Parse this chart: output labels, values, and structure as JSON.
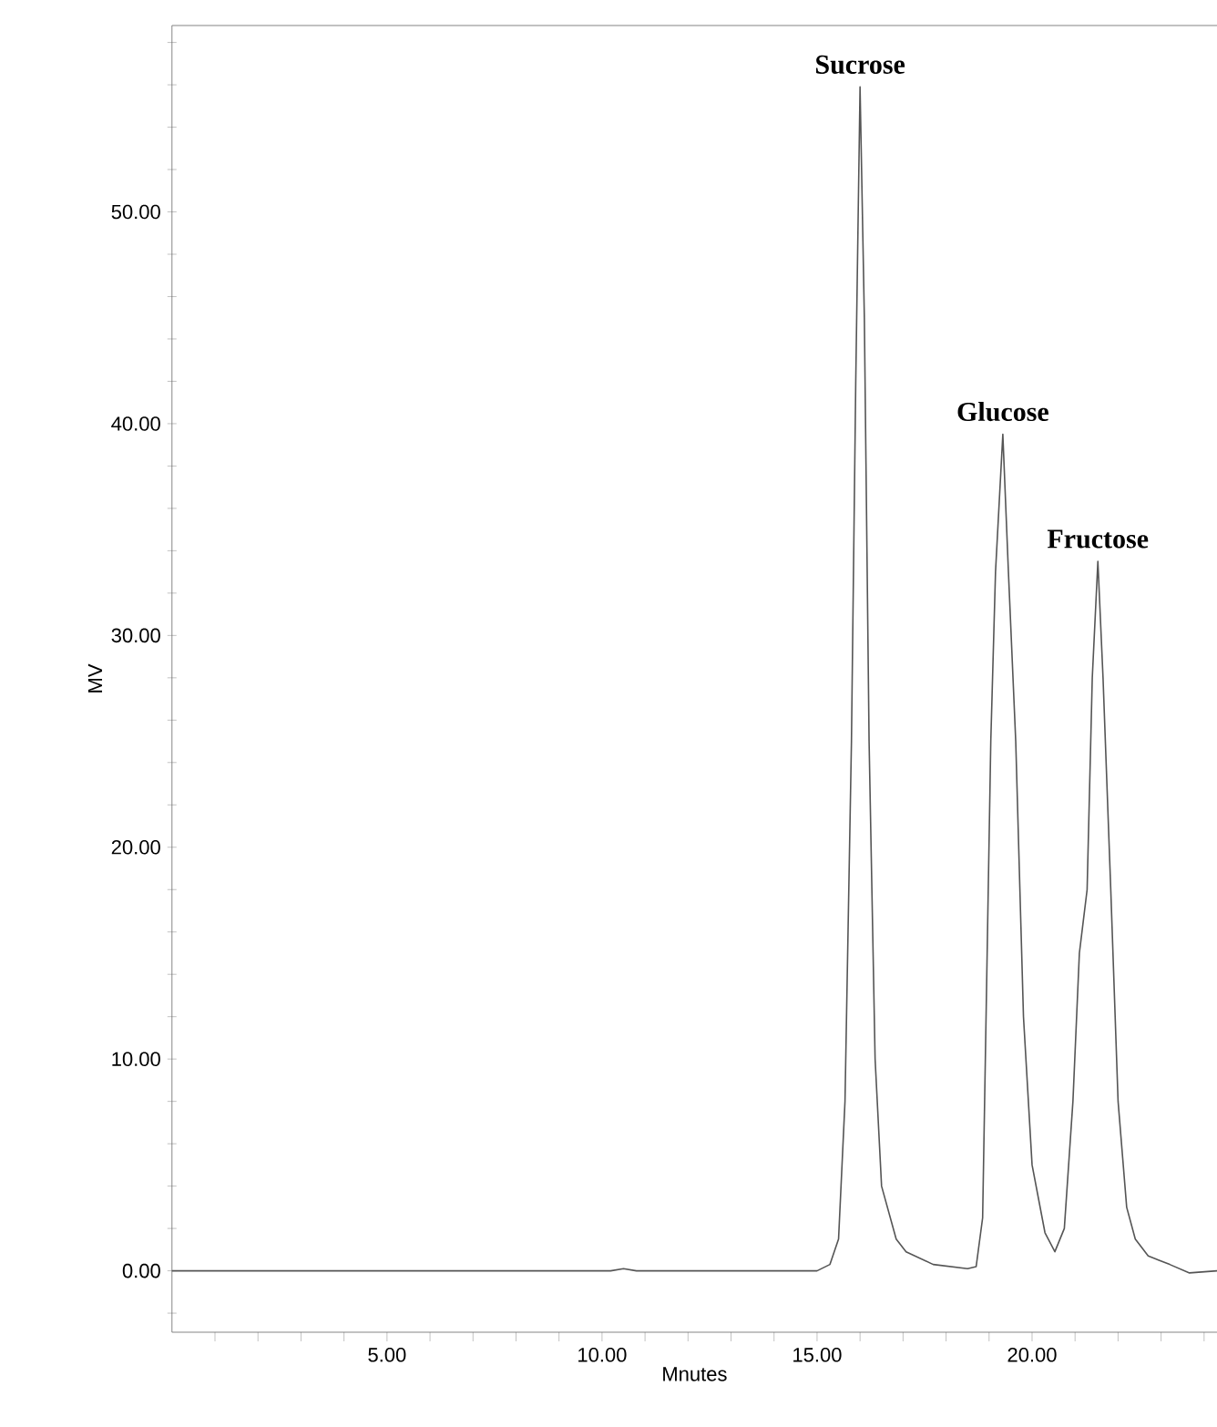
{
  "chart_data": {
    "type": "line",
    "xlabel": "Mnutes",
    "ylabel": "MV",
    "xlim": [
      0,
      24.3
    ],
    "ylim": [
      -2.9,
      58.8
    ],
    "xticks": [
      {
        "value": 1,
        "label": null
      },
      {
        "value": 2,
        "label": null
      },
      {
        "value": 3,
        "label": null
      },
      {
        "value": 4,
        "label": null
      },
      {
        "value": 5,
        "label": "5.00"
      },
      {
        "value": 6,
        "label": null
      },
      {
        "value": 7,
        "label": null
      },
      {
        "value": 8,
        "label": null
      },
      {
        "value": 9,
        "label": null
      },
      {
        "value": 10,
        "label": "10.00"
      },
      {
        "value": 11,
        "label": null
      },
      {
        "value": 12,
        "label": null
      },
      {
        "value": 13,
        "label": null
      },
      {
        "value": 14,
        "label": null
      },
      {
        "value": 15,
        "label": "15.00"
      },
      {
        "value": 16,
        "label": null
      },
      {
        "value": 17,
        "label": null
      },
      {
        "value": 18,
        "label": null
      },
      {
        "value": 19,
        "label": null
      },
      {
        "value": 20,
        "label": "20.00"
      },
      {
        "value": 21,
        "label": null
      },
      {
        "value": 22,
        "label": null
      },
      {
        "value": 23,
        "label": null
      },
      {
        "value": 24,
        "label": null
      }
    ],
    "yticks": [
      {
        "value": -2,
        "label": null
      },
      {
        "value": 0,
        "label": "0.00"
      },
      {
        "value": 2,
        "label": null
      },
      {
        "value": 4,
        "label": null
      },
      {
        "value": 6,
        "label": null
      },
      {
        "value": 8,
        "label": null
      },
      {
        "value": 10,
        "label": "10.00"
      },
      {
        "value": 12,
        "label": null
      },
      {
        "value": 14,
        "label": null
      },
      {
        "value": 16,
        "label": null
      },
      {
        "value": 18,
        "label": null
      },
      {
        "value": 20,
        "label": "20.00"
      },
      {
        "value": 22,
        "label": null
      },
      {
        "value": 24,
        "label": null
      },
      {
        "value": 26,
        "label": null
      },
      {
        "value": 28,
        "label": null
      },
      {
        "value": 30,
        "label": "30.00"
      },
      {
        "value": 32,
        "label": null
      },
      {
        "value": 34,
        "label": null
      },
      {
        "value": 36,
        "label": null
      },
      {
        "value": 38,
        "label": null
      },
      {
        "value": 40,
        "label": "40.00"
      },
      {
        "value": 42,
        "label": null
      },
      {
        "value": 44,
        "label": null
      },
      {
        "value": 46,
        "label": null
      },
      {
        "value": 48,
        "label": null
      },
      {
        "value": 50,
        "label": "50.00"
      },
      {
        "value": 52,
        "label": null
      },
      {
        "value": 54,
        "label": null
      },
      {
        "value": 56,
        "label": null
      },
      {
        "value": 58,
        "label": null
      }
    ],
    "x": [
      0,
      10.2,
      10.5,
      10.8,
      15.0,
      15.3,
      15.5,
      15.65,
      15.8,
      15.9,
      16.0,
      16.1,
      16.21,
      16.35,
      16.5,
      16.84,
      17.07,
      17.7,
      18.5,
      18.7,
      18.85,
      19.04,
      19.15,
      19.32,
      19.45,
      19.62,
      19.8,
      20.0,
      20.3,
      20.53,
      20.75,
      20.95,
      21.1,
      21.28,
      21.4,
      21.53,
      21.65,
      21.83,
      22.0,
      22.2,
      22.4,
      22.7,
      23.2,
      23.66,
      24.3
    ],
    "series": [
      {
        "color": "#555555",
        "values": [
          0,
          0,
          0.1,
          0,
          0,
          0.3,
          1.5,
          8,
          25,
          42,
          55.9,
          45,
          25,
          10,
          4,
          1.5,
          0.9,
          0.3,
          0.1,
          0.2,
          2.5,
          25,
          33,
          39.5,
          33,
          25,
          12,
          5,
          1.8,
          0.9,
          2,
          8,
          15,
          18,
          28,
          33.5,
          28,
          18,
          8,
          3,
          1.5,
          0.7,
          0.3,
          -0.1,
          0
        ]
      }
    ],
    "marker": "none",
    "line_style": "solid",
    "annotations": [
      {
        "text": "Sucrose",
        "x": 16.0,
        "y": 55.9
      },
      {
        "text": "Glucose",
        "x": 19.32,
        "y": 39.5
      },
      {
        "text": "Fructose",
        "x": 21.53,
        "y": 33.5
      }
    ]
  }
}
